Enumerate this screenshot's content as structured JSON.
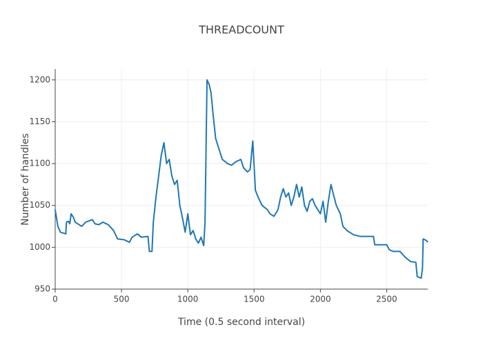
{
  "chart_data": {
    "type": "line",
    "title": "THREADCOUNT",
    "x_label": "Time (0.5 second interval)",
    "y_label": "Number of handles",
    "xlim": [
      0,
      2810
    ],
    "ylim": [
      950,
      1213
    ],
    "xticks": [
      0,
      500,
      1000,
      1500,
      2000,
      2500
    ],
    "yticks": [
      950,
      1000,
      1050,
      1100,
      1150,
      1200
    ],
    "grid": true,
    "x": [
      0,
      10,
      20,
      40,
      80,
      85,
      100,
      110,
      120,
      140,
      150,
      200,
      230,
      280,
      300,
      330,
      360,
      400,
      440,
      470,
      520,
      560,
      580,
      620,
      650,
      700,
      710,
      730,
      740,
      760,
      780,
      800,
      820,
      840,
      860,
      880,
      900,
      920,
      940,
      960,
      980,
      1000,
      1020,
      1040,
      1060,
      1080,
      1100,
      1120,
      1130,
      1145,
      1160,
      1175,
      1190,
      1210,
      1240,
      1260,
      1300,
      1330,
      1360,
      1400,
      1420,
      1450,
      1470,
      1490,
      1510,
      1530,
      1560,
      1600,
      1620,
      1650,
      1680,
      1700,
      1720,
      1740,
      1760,
      1780,
      1800,
      1820,
      1840,
      1860,
      1880,
      1900,
      1920,
      1940,
      1960,
      1980,
      2000,
      2020,
      2040,
      2060,
      2080,
      2100,
      2120,
      2150,
      2170,
      2200,
      2250,
      2300,
      2400,
      2410,
      2500,
      2520,
      2550,
      2600,
      2640,
      2680,
      2720,
      2730,
      2760,
      2770,
      2775,
      2800,
      2810
    ],
    "series": [
      {
        "name": "THREADCOUNT",
        "color": "#1f77b4",
        "values": [
          1045,
          1035,
          1025,
          1018,
          1016,
          1030,
          1031,
          1028,
          1040,
          1035,
          1030,
          1025,
          1030,
          1033,
          1028,
          1027,
          1030,
          1027,
          1020,
          1010,
          1009,
          1006,
          1012,
          1016,
          1012,
          1013,
          995,
          995,
          1030,
          1060,
          1085,
          1110,
          1125,
          1100,
          1105,
          1085,
          1075,
          1080,
          1050,
          1035,
          1018,
          1040,
          1015,
          1020,
          1010,
          1005,
          1012,
          1002,
          1030,
          1200,
          1195,
          1185,
          1160,
          1130,
          1115,
          1105,
          1100,
          1098,
          1102,
          1105,
          1095,
          1090,
          1093,
          1127,
          1068,
          1060,
          1050,
          1045,
          1040,
          1037,
          1045,
          1060,
          1070,
          1060,
          1065,
          1050,
          1060,
          1075,
          1060,
          1072,
          1050,
          1043,
          1055,
          1058,
          1050,
          1045,
          1040,
          1055,
          1030,
          1055,
          1075,
          1062,
          1050,
          1040,
          1025,
          1020,
          1015,
          1013,
          1013,
          1003,
          1003,
          997,
          995,
          995,
          988,
          983,
          982,
          965,
          963,
          975,
          1010,
          1008,
          1006
        ]
      }
    ]
  }
}
